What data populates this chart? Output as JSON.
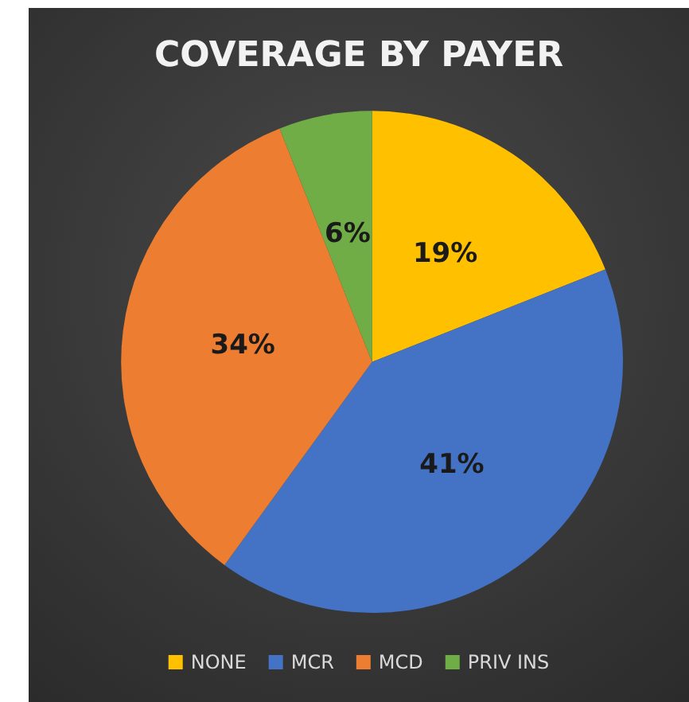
{
  "chart_data": {
    "type": "pie",
    "title": "COVERAGE BY PAYER",
    "categories": [
      "NONE",
      "MCR",
      "MCD",
      "PRIV INS"
    ],
    "values": [
      19,
      41,
      34,
      6
    ],
    "colors": [
      "#ffc000",
      "#4472c4",
      "#ed7d31",
      "#70ad47"
    ],
    "value_labels": [
      "19%",
      "41%",
      "34%",
      "6%"
    ],
    "legend": "bottom"
  }
}
